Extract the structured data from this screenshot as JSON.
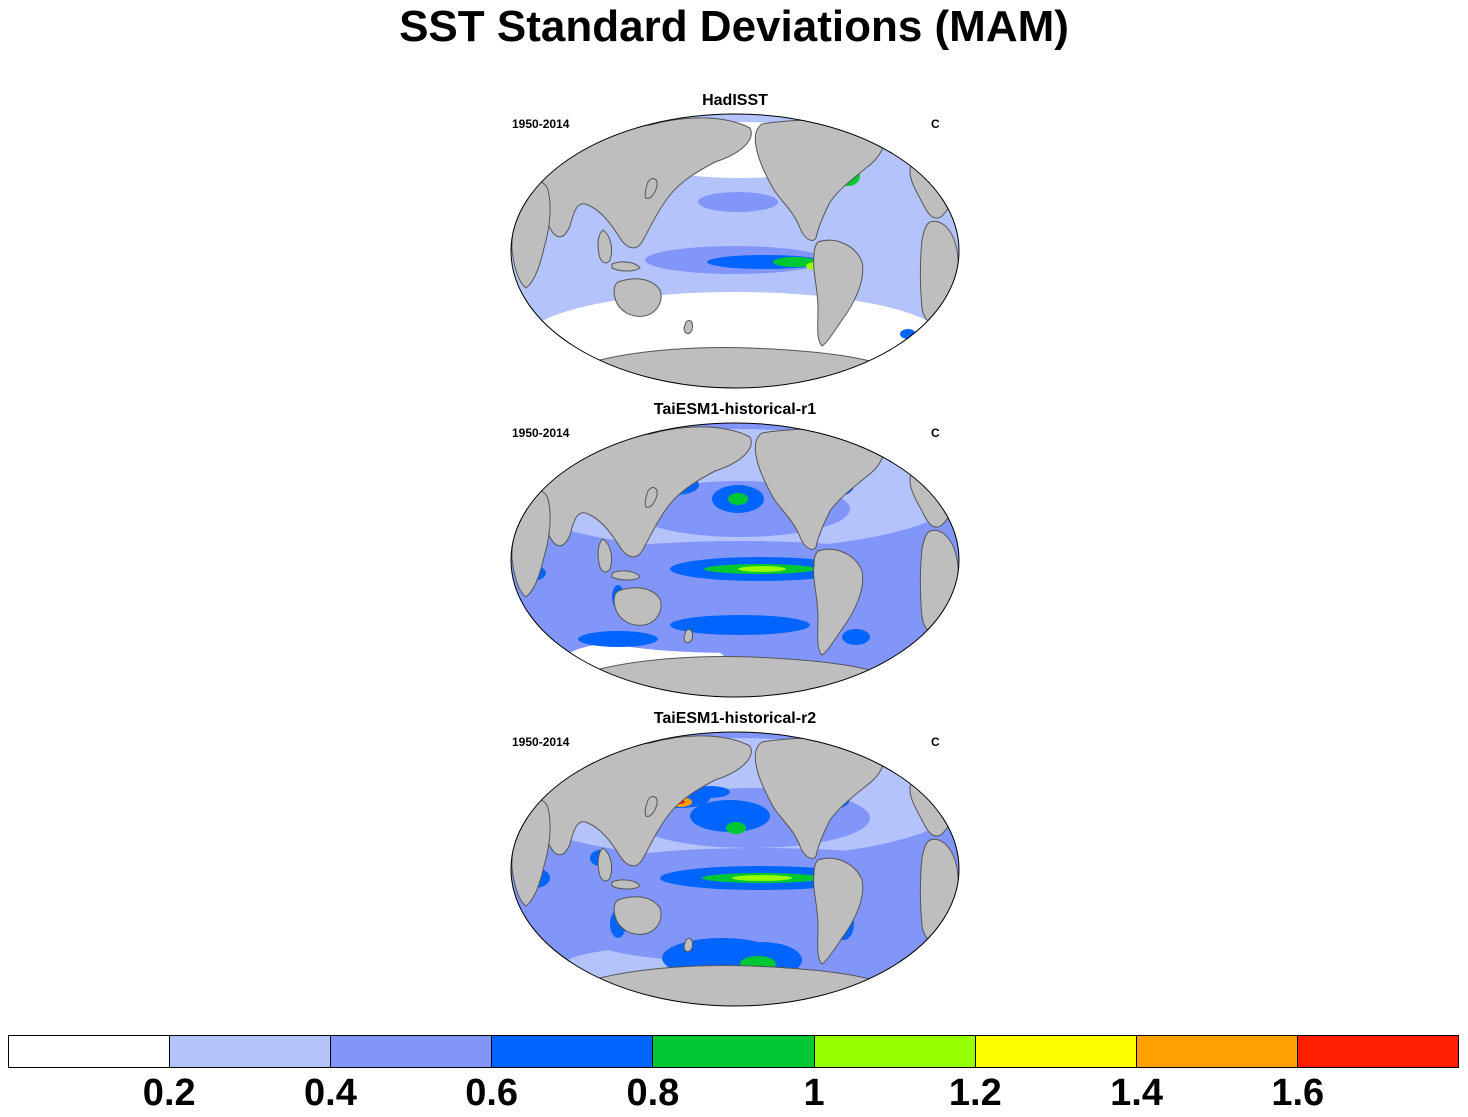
{
  "title": "SST Standard Deviations (MAM)",
  "panels": [
    {
      "title": "HadISST",
      "period": "1950-2014",
      "units": "C"
    },
    {
      "title": "TaiESM1-historical-r1",
      "period": "1950-2014",
      "units": "C"
    },
    {
      "title": "TaiESM1-historical-r2",
      "period": "1950-2014",
      "units": "C"
    }
  ],
  "colorbar": {
    "colors": [
      "#ffffff",
      "#b4c3fb",
      "#8296fa",
      "#0064ff",
      "#00c832",
      "#96ff00",
      "#ffff00",
      "#ffa000",
      "#ff1e00"
    ],
    "labels": [
      "0.2",
      "0.4",
      "0.6",
      "0.8",
      "1",
      "1.2",
      "1.4",
      "1.6"
    ]
  },
  "map_colors": {
    "land": "#bebebe",
    "coast": "#555555"
  }
}
